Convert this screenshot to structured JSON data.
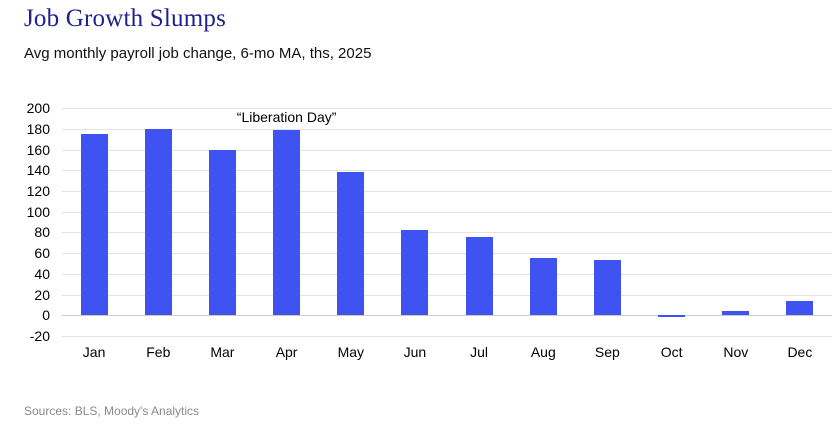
{
  "title": "Job Growth Slumps",
  "subtitle": "Avg monthly payroll job change, 6-mo MA, ths, 2025",
  "source": "Sources: BLS, Moody's Analytics",
  "colors": {
    "bar": "#3E53F1",
    "title": "#20208F",
    "grid": "#E3E3E3",
    "zero_line": "#C9C9C9",
    "source_text": "#8A8A8A"
  },
  "chart_data": {
    "type": "bar",
    "title": "Job Growth Slumps",
    "subtitle": "Avg monthly payroll job change, 6-mo MA, ths, 2025",
    "categories": [
      "Jan",
      "Feb",
      "Mar",
      "Apr",
      "May",
      "Jun",
      "Jul",
      "Aug",
      "Sep",
      "Oct",
      "Nov",
      "Dec"
    ],
    "values": [
      175,
      180,
      160,
      179,
      138,
      82,
      76,
      55,
      53,
      -2,
      4,
      14
    ],
    "xlabel": "",
    "ylabel": "",
    "ylim": [
      -20,
      200
    ],
    "ytick_step": 20,
    "grid": true,
    "legend": false,
    "annotation": {
      "text": "“Liberation Day”",
      "month": "Apr"
    },
    "source": "Sources: BLS, Moody's Analytics"
  }
}
